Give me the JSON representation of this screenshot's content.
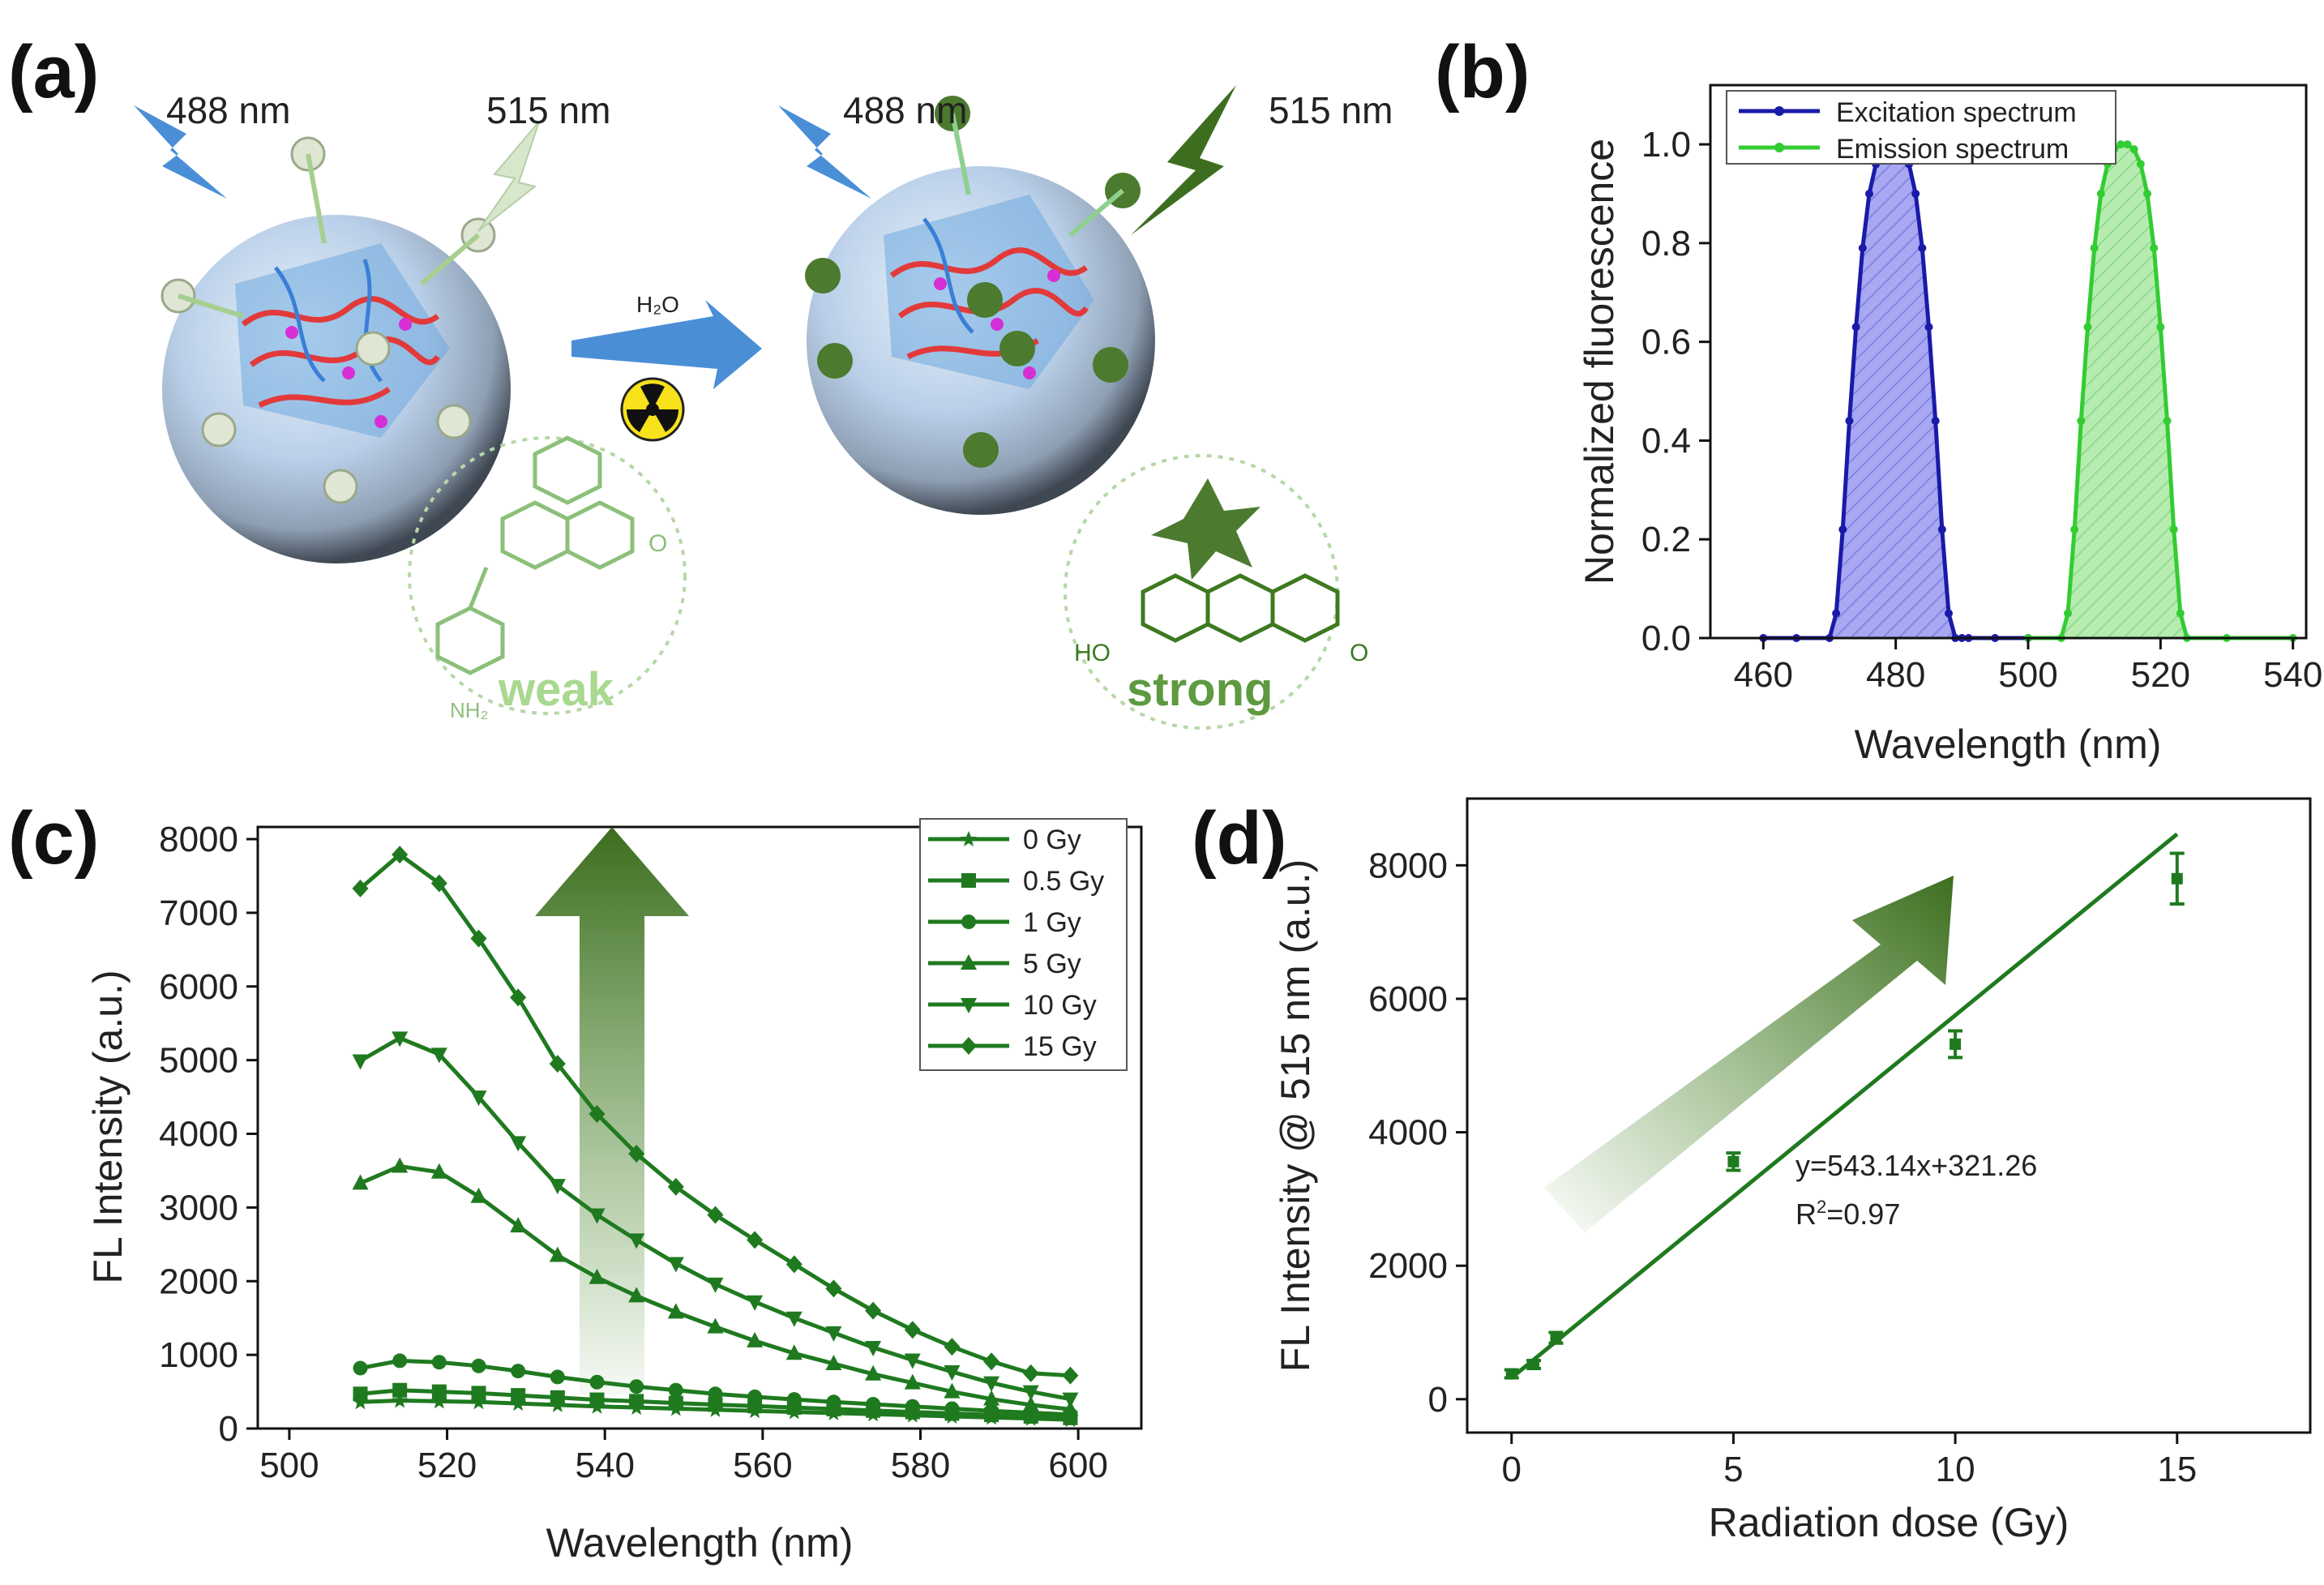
{
  "panels": {
    "a": "(a)",
    "b": "(b)",
    "c": "(c)",
    "d": "(d)"
  },
  "schematic": {
    "left_excitation": "488 nm",
    "left_emission": "515 nm",
    "right_excitation": "488 nm",
    "right_emission": "515 nm",
    "reaction_label": "H₂O",
    "weak_label": "weak",
    "strong_label": "strong",
    "nh2_label": "NH₂",
    "ho_label": "HO",
    "o_label": "O",
    "colors": {
      "light_green": "#a9d88f",
      "dark_green": "#3d7a1f",
      "blue": "#4a8fd6"
    }
  },
  "chart_data": [
    {
      "id": "b",
      "type": "line",
      "title": "",
      "xlabel": "Wavelength (nm)",
      "ylabel": "Normalized fluorescence",
      "xlim": [
        452,
        542
      ],
      "ylim": [
        0,
        1.12
      ],
      "xticks": [
        460,
        480,
        500,
        520,
        540
      ],
      "yticks": [
        0.0,
        0.2,
        0.4,
        0.6,
        0.8,
        1.0
      ],
      "legend_position": "top-left",
      "series": [
        {
          "name": "Excitation spectrum",
          "color": "#1a1aa8",
          "fill": "#8c8cf0",
          "x": [
            460,
            465,
            470,
            471,
            472,
            473,
            474,
            475,
            476,
            477,
            478,
            479,
            480,
            481,
            482,
            483,
            484,
            485,
            486,
            487,
            488,
            489,
            490,
            491,
            495,
            500
          ],
          "y": [
            0,
            0,
            0.0,
            0.05,
            0.22,
            0.44,
            0.63,
            0.79,
            0.9,
            0.96,
            0.99,
            1.0,
            1.0,
            0.99,
            0.96,
            0.9,
            0.79,
            0.63,
            0.44,
            0.22,
            0.05,
            0.0,
            0,
            0,
            0,
            0
          ]
        },
        {
          "name": "Emission spectrum",
          "color": "#33cc33",
          "fill": "#9be39b",
          "x": [
            500,
            505,
            506,
            507,
            508,
            509,
            510,
            511,
            512,
            513,
            514,
            515,
            516,
            517,
            518,
            519,
            520,
            521,
            522,
            523,
            524,
            530,
            540
          ],
          "y": [
            0,
            0.0,
            0.05,
            0.22,
            0.44,
            0.63,
            0.79,
            0.9,
            0.96,
            0.99,
            1.0,
            1.0,
            0.99,
            0.96,
            0.9,
            0.79,
            0.63,
            0.44,
            0.22,
            0.05,
            0.0,
            0,
            0
          ]
        }
      ]
    },
    {
      "id": "c",
      "type": "line",
      "title": "",
      "xlabel": "Wavelength (nm)",
      "ylabel": "FL Intensity (a.u.)",
      "xlim": [
        496,
        608
      ],
      "ylim": [
        0,
        8000
      ],
      "xticks": [
        500,
        520,
        540,
        560,
        580,
        600
      ],
      "yticks": [
        0,
        1000,
        2000,
        3000,
        4000,
        5000,
        6000,
        7000,
        8000
      ],
      "legend_position": "top-right",
      "x": [
        509,
        514,
        519,
        524,
        529,
        534,
        539,
        544,
        549,
        554,
        559,
        564,
        569,
        574,
        579,
        584,
        589,
        594,
        599
      ],
      "series": [
        {
          "name": "0 Gy",
          "marker": "star",
          "values": [
            360,
            380,
            370,
            360,
            340,
            320,
            300,
            285,
            270,
            255,
            240,
            225,
            210,
            195,
            180,
            165,
            150,
            135,
            120
          ]
        },
        {
          "name": "0.5 Gy",
          "marker": "square",
          "values": [
            470,
            520,
            500,
            480,
            450,
            420,
            390,
            370,
            345,
            325,
            305,
            285,
            265,
            245,
            225,
            205,
            185,
            165,
            145
          ]
        },
        {
          "name": "1 Gy",
          "marker": "circle",
          "values": [
            820,
            920,
            900,
            850,
            780,
            700,
            630,
            570,
            520,
            470,
            430,
            395,
            360,
            330,
            300,
            270,
            240,
            215,
            190
          ]
        },
        {
          "name": "5 Gy",
          "marker": "triangle-up",
          "values": [
            3330,
            3560,
            3480,
            3150,
            2750,
            2350,
            2050,
            1800,
            1580,
            1380,
            1190,
            1020,
            880,
            740,
            620,
            500,
            400,
            320,
            260
          ]
        },
        {
          "name": "10 Gy",
          "marker": "triangle-down",
          "values": [
            4990,
            5300,
            5080,
            4500,
            3880,
            3300,
            2900,
            2560,
            2240,
            1960,
            1720,
            1500,
            1300,
            1100,
            930,
            770,
            620,
            500,
            400
          ]
        },
        {
          "name": "15 Gy",
          "marker": "diamond",
          "values": [
            7330,
            7790,
            7400,
            6650,
            5850,
            4950,
            4270,
            3730,
            3280,
            2900,
            2560,
            2230,
            1900,
            1600,
            1340,
            1110,
            910,
            750,
            720
          ]
        }
      ]
    },
    {
      "id": "d",
      "type": "scatter",
      "title": "",
      "xlabel": "Radiation dose (Gy)",
      "ylabel": "FL Intensity @ 515 nm (a.u.)",
      "xlim": [
        -1,
        18
      ],
      "ylim": [
        -500,
        9000
      ],
      "xticks": [
        0,
        5,
        10,
        15
      ],
      "yticks": [
        0,
        2000,
        4000,
        6000,
        8000
      ],
      "points": [
        {
          "x": 0,
          "y": 380,
          "err": 60
        },
        {
          "x": 0.5,
          "y": 520,
          "err": 60
        },
        {
          "x": 1,
          "y": 920,
          "err": 80
        },
        {
          "x": 5,
          "y": 3560,
          "err": 130
        },
        {
          "x": 10,
          "y": 5320,
          "err": 200
        },
        {
          "x": 15,
          "y": 7800,
          "err": 380
        }
      ],
      "fit": {
        "slope": 543.14,
        "intercept": 321.26,
        "x_range": [
          0,
          15
        ]
      },
      "equation": "y=543.14x+321.26",
      "r2_prefix": "R",
      "r2_sup": "2",
      "r2_value": "=0.97",
      "color": "#1f7a1f"
    }
  ]
}
